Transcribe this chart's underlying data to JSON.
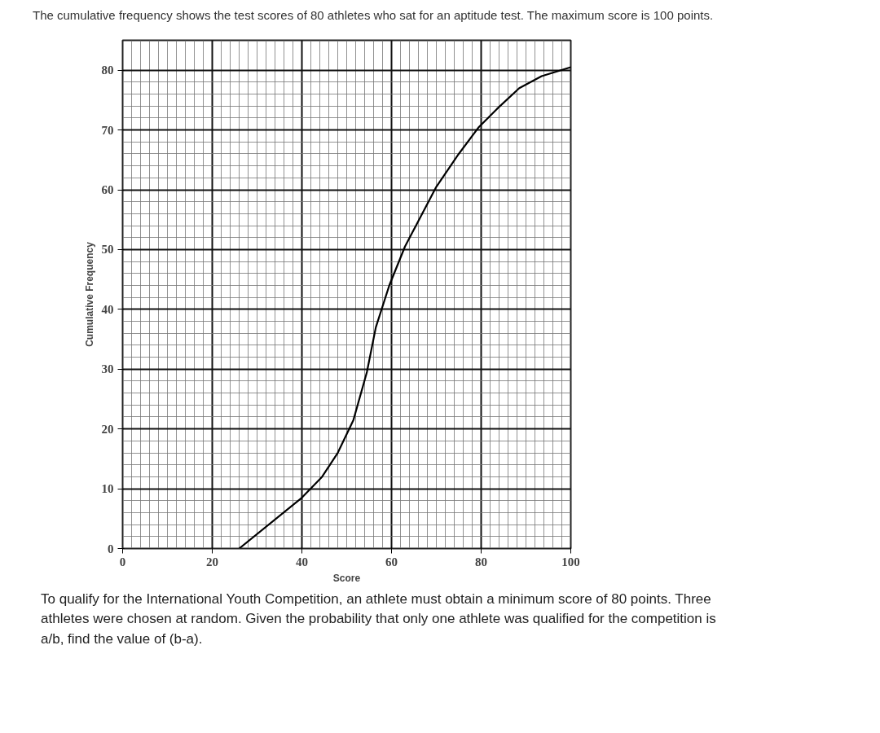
{
  "chart_data": {
    "type": "line",
    "title": "The cumulative frequency shows the test scores of 80 athletes who sat for an aptitude test. The maximum score is 100 points.",
    "xlabel": "Score",
    "ylabel": "Cumulative Frequency",
    "x": [
      26,
      40,
      44.5,
      48,
      51.5,
      54.5,
      56.5,
      59.5,
      63,
      66.5,
      70,
      75,
      79.5,
      83.5,
      88.5,
      93.5,
      100
    ],
    "series": [
      {
        "color": "#000000",
        "values": [
          0,
          8.5,
          12,
          16,
          21.5,
          29.5,
          37,
          44,
          50.5,
          55.5,
          60.5,
          66,
          70.5,
          73.5,
          77,
          79,
          80.5
        ]
      }
    ],
    "xlim": [
      0,
      100
    ],
    "ylim": [
      0,
      85
    ],
    "xticks": [
      0,
      20,
      40,
      60,
      80,
      100
    ],
    "yticks": [
      0,
      10,
      20,
      30,
      40,
      50,
      60,
      70,
      80
    ],
    "grid": true,
    "marker": "none",
    "line_style": "solid",
    "annotations": [
      "To qualify for the International Youth Competition, an athlete must obtain a minimum score of 80 points. Three athletes were chosen at random. Given the probability that only one athlete was qualified for the competition is a/b, find the value of (b-a)."
    ]
  }
}
